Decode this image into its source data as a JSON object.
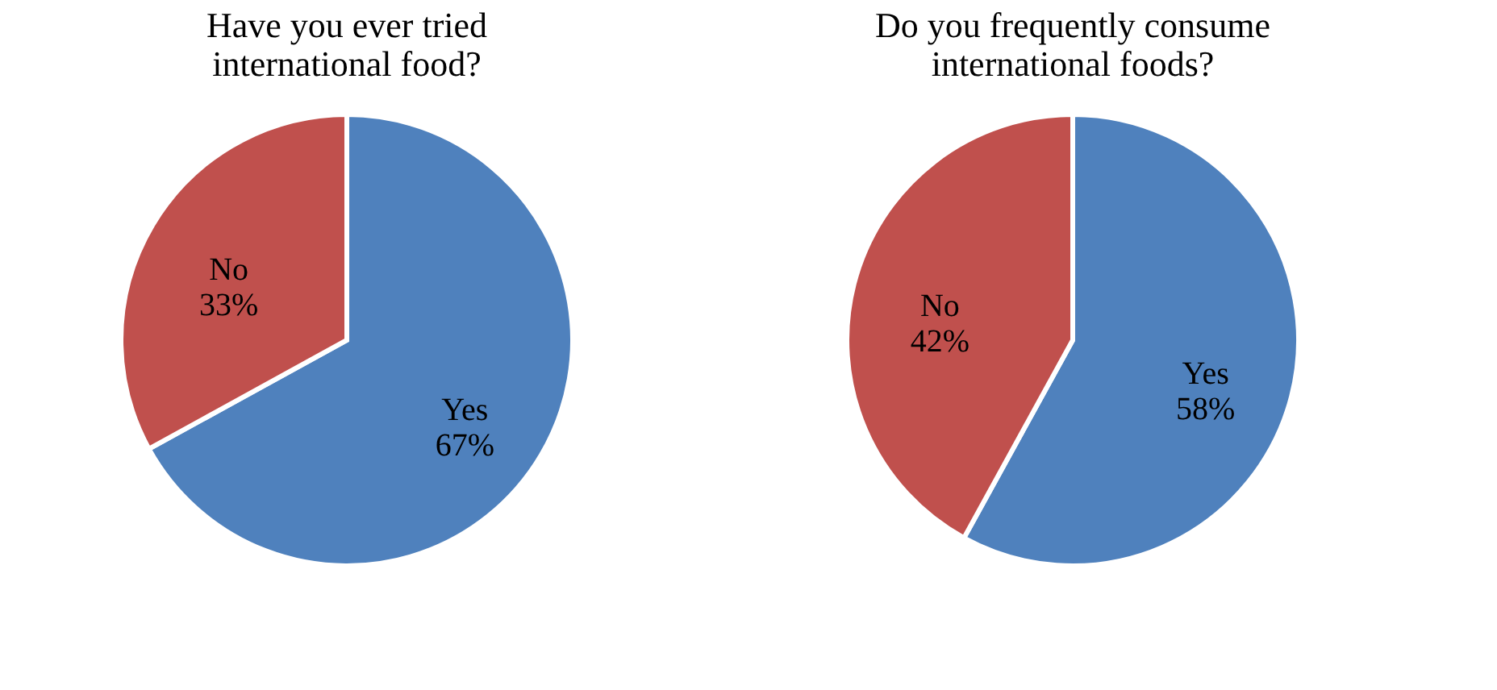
{
  "chart_data": [
    {
      "type": "pie",
      "title": "Have you ever tried international food?",
      "categories": [
        "Yes",
        "No"
      ],
      "values": [
        67,
        33
      ],
      "colors": [
        "#4f81bd",
        "#c0504d"
      ],
      "value_labels": [
        "67%",
        "33%"
      ]
    },
    {
      "type": "pie",
      "title": "Do you frequently consume international foods?",
      "categories": [
        "Yes",
        "No"
      ],
      "values": [
        58,
        42
      ],
      "colors": [
        "#4f81bd",
        "#c0504d"
      ],
      "value_labels": [
        "58%",
        "42%"
      ]
    }
  ]
}
